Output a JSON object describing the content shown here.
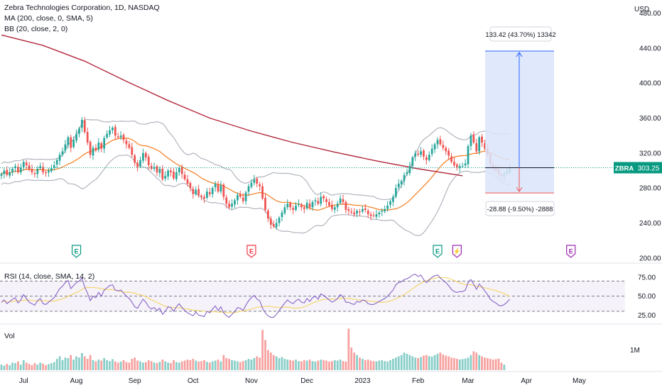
{
  "header": {
    "symbol_line": "Zebra Technologies Corporation, 1D, NASDAQ",
    "ma_label": "MA (200, close, 0, SMA, 5)",
    "bb_label": "BB (20, close, 2, 0)",
    "currency": "USD",
    "ticker": "ZBRA",
    "last_price": "303.25"
  },
  "measure": {
    "up_label": "133.42 (43.70%) 13342",
    "down_label": "-28.88 (-9.50%) -2888",
    "base_price": 303.25,
    "top_price": 436.67,
    "bottom_price": 274.37
  },
  "colors": {
    "up": "#26a69a",
    "down": "#ef5350",
    "ma": "#b2283d",
    "bb_mid": "#f57c1f",
    "bb_band": "#b2b5be",
    "rsi": "#7e57c2",
    "rsi_ma": "#f5d76e",
    "measure_fill": "#dbe5fb",
    "measure_line": "#2962ff",
    "last_line": "#089981",
    "earnings": "#089981",
    "earnings_down": "#f23645",
    "dividend": "#9c27b0"
  },
  "events": [
    {
      "label": "E",
      "color": "#089981",
      "date_index": 27
    },
    {
      "label": "E",
      "color": "#f23645",
      "date_index": 90
    },
    {
      "label": "E",
      "color": "#089981",
      "date_index": 157
    },
    {
      "label": "⚡",
      "color": "#9c27b0",
      "date_index": 164
    },
    {
      "label": "E",
      "color": "#9c27b0",
      "date_index": 205
    }
  ],
  "rsi_panel": {
    "label": "RSI (14, close, SMA, 14, 2)",
    "ticks": [
      "75.00",
      "50.00",
      "25.00"
    ]
  },
  "vol_panel": {
    "label": "Vol",
    "tick": "1M"
  },
  "chart_data": {
    "type": "candlestick",
    "title": "Zebra Technologies Corporation, 1D, NASDAQ",
    "price_axis": {
      "unit": "USD",
      "ylim": [
        195,
        495
      ],
      "ticks": [
        200,
        240,
        280,
        320,
        360,
        400,
        440,
        480
      ]
    },
    "rsi_axis": {
      "ylim": [
        15,
        90
      ],
      "ticks": [
        25,
        50,
        75
      ]
    },
    "x_ticks": [
      "Jul",
      "Aug",
      "Sep",
      "Oct",
      "Nov",
      "Dec",
      "2023",
      "Feb",
      "Mar",
      "Apr",
      "May"
    ],
    "x_tick_index": [
      8,
      27,
      48,
      69,
      90,
      110,
      130,
      150,
      168,
      189,
      208
    ],
    "n_slots": 225,
    "ma200": [
      [
        0,
        455
      ],
      [
        15,
        443
      ],
      [
        30,
        425
      ],
      [
        45,
        402
      ],
      [
        60,
        380
      ],
      [
        75,
        360
      ],
      [
        90,
        345
      ],
      [
        105,
        332
      ],
      [
        120,
        321
      ],
      [
        135,
        311
      ],
      [
        150,
        302
      ],
      [
        160,
        297
      ],
      [
        166,
        294
      ]
    ],
    "closes": [
      296,
      300,
      295,
      298,
      302,
      305,
      298,
      303,
      310,
      306,
      301,
      298,
      296,
      302,
      305,
      298,
      297,
      300,
      303,
      306,
      312,
      318,
      322,
      330,
      338,
      326,
      335,
      342,
      348,
      358,
      344,
      332,
      318,
      326,
      323,
      332,
      325,
      337,
      342,
      346,
      349,
      340,
      338,
      340,
      335,
      330,
      326,
      318,
      309,
      304,
      312,
      320,
      315,
      306,
      302,
      304,
      298,
      302,
      290,
      294,
      300,
      298,
      291,
      298,
      303,
      296,
      290,
      285,
      280,
      273,
      278,
      272,
      270,
      268,
      276,
      273,
      280,
      285,
      276,
      283,
      270,
      262,
      258,
      262,
      266,
      272,
      270,
      265,
      275,
      282,
      286,
      290,
      285,
      282,
      268,
      255,
      245,
      238,
      236,
      240,
      246,
      252,
      258,
      262,
      258,
      255,
      260,
      262,
      258,
      256,
      263,
      258,
      264,
      266,
      262,
      270,
      268,
      264,
      260,
      256,
      258,
      262,
      268,
      264,
      255,
      254,
      252,
      250,
      254,
      253,
      256,
      255,
      250,
      248,
      248,
      250,
      252,
      254,
      256,
      260,
      265,
      270,
      280,
      285,
      288,
      295,
      298,
      305,
      315,
      320,
      318,
      322,
      316,
      312,
      318,
      325,
      330,
      335,
      330,
      326,
      322,
      317,
      310,
      306,
      304,
      305,
      305,
      308,
      328,
      340,
      332,
      322,
      338,
      332,
      325,
      318,
      308,
      303,
      300,
      296,
      294,
      296,
      299,
      303.25
    ],
    "rsi": [
      42,
      45,
      40,
      43,
      46,
      48,
      41,
      45,
      52,
      47,
      42,
      40,
      38,
      44,
      47,
      40,
      39,
      42,
      45,
      48,
      54,
      60,
      63,
      68,
      71,
      60,
      64,
      68,
      70,
      74,
      62,
      54,
      44,
      50,
      48,
      55,
      50,
      58,
      61,
      64,
      65,
      58,
      57,
      58,
      54,
      50,
      47,
      42,
      36,
      34,
      40,
      46,
      42,
      36,
      33,
      35,
      31,
      34,
      26,
      30,
      36,
      35,
      30,
      36,
      40,
      35,
      31,
      28,
      26,
      24,
      29,
      25,
      24,
      23,
      30,
      28,
      33,
      37,
      31,
      36,
      28,
      24,
      22,
      26,
      30,
      35,
      34,
      31,
      38,
      44,
      48,
      51,
      46,
      44,
      34,
      28,
      24,
      22,
      22,
      26,
      31,
      36,
      41,
      45,
      42,
      40,
      44,
      46,
      42,
      41,
      47,
      43,
      48,
      50,
      46,
      53,
      51,
      48,
      45,
      42,
      44,
      47,
      52,
      49,
      42,
      42,
      40,
      39,
      43,
      42,
      45,
      44,
      40,
      39,
      39,
      41,
      43,
      45,
      47,
      50,
      54,
      58,
      65,
      68,
      69,
      72,
      73,
      75,
      78,
      79,
      76,
      78,
      72,
      68,
      72,
      75,
      77,
      78,
      74,
      71,
      68,
      64,
      59,
      56,
      55,
      56,
      56,
      58,
      68,
      72,
      66,
      59,
      66,
      62,
      57,
      52,
      46,
      43,
      41,
      38,
      37,
      39,
      42,
      46
    ],
    "volume": [
      0.22,
      0.18,
      0.25,
      0.2,
      0.3,
      0.28,
      0.35,
      0.22,
      0.4,
      0.3,
      0.25,
      0.2,
      0.28,
      0.22,
      0.3,
      0.26,
      0.2,
      0.24,
      0.28,
      0.32,
      0.45,
      0.55,
      0.4,
      0.5,
      0.48,
      0.6,
      0.42,
      0.55,
      0.5,
      0.68,
      0.55,
      0.45,
      0.6,
      0.4,
      0.35,
      0.42,
      0.38,
      0.48,
      0.4,
      0.36,
      0.44,
      0.35,
      0.3,
      0.34,
      0.4,
      0.32,
      0.3,
      0.45,
      0.5,
      0.38,
      0.35,
      0.3,
      0.32,
      0.4,
      0.36,
      0.3,
      0.28,
      0.33,
      0.42,
      0.35,
      0.3,
      0.28,
      0.4,
      0.32,
      0.3,
      0.35,
      0.38,
      0.42,
      0.4,
      0.45,
      0.38,
      0.34,
      0.36,
      0.4,
      0.33,
      0.3,
      0.35,
      0.38,
      0.42,
      0.35,
      0.6,
      0.48,
      0.45,
      0.4,
      0.38,
      0.35,
      0.32,
      0.36,
      0.4,
      0.45,
      0.42,
      0.48,
      0.55,
      0.5,
      1.6,
      1.2,
      0.8,
      0.7,
      0.6,
      0.55,
      0.48,
      0.52,
      0.45,
      0.42,
      0.4,
      0.38,
      0.42,
      0.36,
      0.35,
      0.4,
      0.38,
      0.42,
      0.36,
      0.34,
      0.38,
      0.42,
      0.4,
      0.38,
      0.34,
      0.36,
      0.4,
      0.38,
      0.42,
      0.36,
      0.34,
      1.65,
      0.9,
      0.7,
      0.6,
      0.5,
      0.45,
      0.4,
      0.42,
      0.38,
      0.36,
      0.35,
      0.38,
      0.4,
      0.36,
      0.34,
      0.4,
      0.45,
      0.5,
      0.55,
      0.6,
      0.7,
      0.65,
      0.6,
      0.55,
      0.5,
      0.48,
      0.52,
      0.58,
      0.6,
      0.56,
      0.54,
      0.6,
      0.65,
      0.7,
      0.62,
      0.58,
      0.55,
      0.5,
      0.48,
      0.45,
      0.42,
      0.44,
      0.46,
      0.5,
      0.6,
      0.75,
      0.7,
      0.6,
      0.55,
      0.5,
      0.48,
      0.45,
      0.42,
      0.44,
      0.46,
      0.3,
      0.22
    ]
  }
}
